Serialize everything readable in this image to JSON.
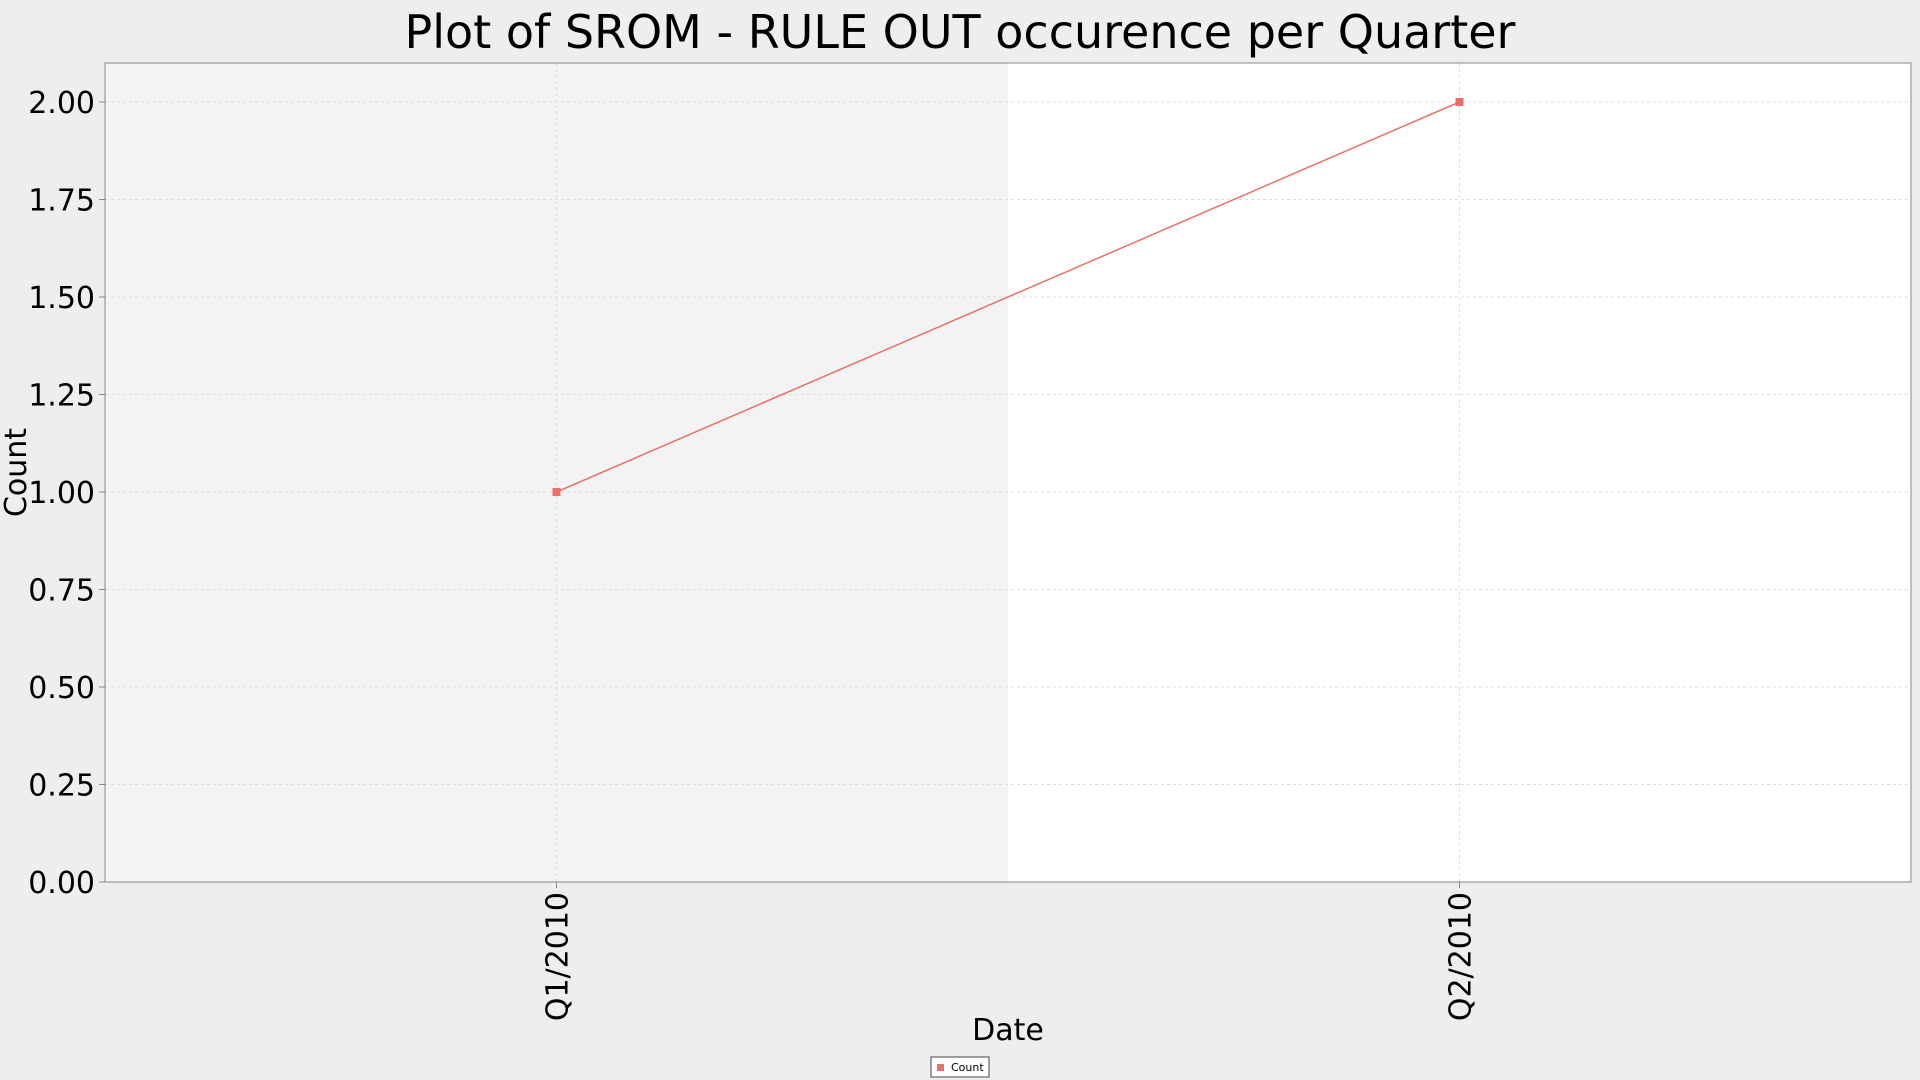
{
  "chart_data": {
    "type": "line",
    "title": "Plot of SROM - RULE OUT occurence per Quarter",
    "xlabel": "Date",
    "ylabel": "Count",
    "categories": [
      "Q1/2010",
      "Q2/2010"
    ],
    "series": [
      {
        "name": "Count",
        "values": [
          1,
          2
        ],
        "color": "#e8706a"
      }
    ],
    "ylim": [
      0,
      2.1
    ],
    "yticks": [
      "0.00",
      "0.25",
      "0.50",
      "0.75",
      "1.00",
      "1.25",
      "1.50",
      "1.75",
      "2.00"
    ],
    "grid": true,
    "legend": "bottom-center",
    "colors": {
      "page_background": "#eeeeee",
      "plot_band_alt": "#f3f3f3",
      "plot_background": "#ffffff",
      "grid": "#dddddd",
      "axis": "#888888"
    }
  }
}
